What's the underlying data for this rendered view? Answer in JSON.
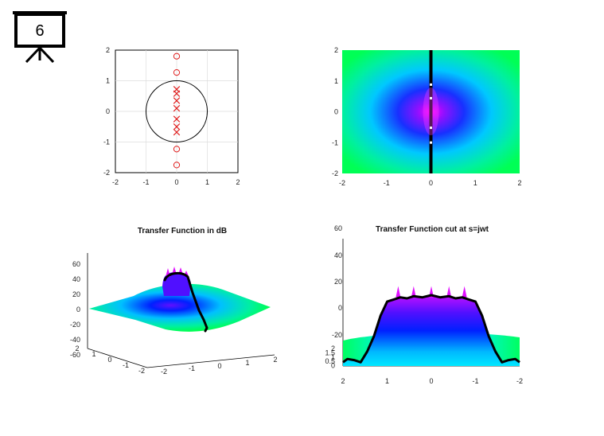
{
  "slide_icon": {
    "icon": "presentation-board-icon",
    "number": "6"
  },
  "chart_data": [
    {
      "type": "scatter",
      "name": "pole-zero-plot",
      "xlim": [
        -2,
        2
      ],
      "ylim": [
        -2,
        2
      ],
      "xticks": [
        "-2",
        "-1",
        "0",
        "1",
        "2"
      ],
      "yticks": [
        "2",
        "1",
        "0",
        "-1",
        "-2"
      ],
      "grid": true,
      "unit_circle": true,
      "zeros": [
        [
          0,
          1.8
        ],
        [
          0,
          1.27
        ],
        [
          0,
          -1.23
        ],
        [
          0,
          -1.75
        ]
      ],
      "poles": [
        [
          0,
          0.72
        ],
        [
          0,
          0.58
        ],
        [
          0,
          0.35
        ],
        [
          0,
          0.1
        ],
        [
          0,
          -0.25
        ],
        [
          0,
          -0.5
        ],
        [
          0,
          -0.68
        ]
      ],
      "colors": {
        "markers": "#e02020",
        "circle": "#000000",
        "grid": "#dddddd"
      }
    },
    {
      "type": "heatmap",
      "name": "transfer-magnitude-map",
      "xlim": [
        -2,
        2
      ],
      "ylim": [
        -2,
        2
      ],
      "xticks": [
        "-2",
        "-1",
        "0",
        "1",
        "2"
      ],
      "yticks": [
        "2",
        "1",
        "0",
        "-1",
        "-2"
      ],
      "colormap": [
        "#00ff60",
        "#00e0ff",
        "#0040ff",
        "#7010ff",
        "#ff00ff"
      ],
      "jw_axis_line": "x = 0"
    },
    {
      "type": "surface",
      "name": "transfer-function-db",
      "title": "Transfer Function in dB",
      "zlim": [
        -60,
        60
      ],
      "zticks": [
        "60",
        "40",
        "20",
        "0",
        "-20",
        "-40",
        "-60"
      ],
      "xticks": [
        "-2",
        "-1",
        "0",
        "1",
        "2"
      ],
      "yticks": [
        "2",
        "1",
        "0",
        "-1",
        "-2"
      ]
    },
    {
      "type": "area",
      "name": "transfer-function-cut",
      "title": "Transfer Function cut at s=jwt",
      "zticks": [
        "60",
        "40",
        "20",
        "0",
        "-20"
      ],
      "extra_ticks": [
        "2",
        "1.5",
        "1",
        "0.5",
        "0"
      ],
      "xticks": [
        "2",
        "1",
        "0",
        "-1",
        "-2"
      ],
      "cut_curve": [
        {
          "x": 2.0,
          "y": -38
        },
        {
          "x": 1.9,
          "y": -35
        },
        {
          "x": 1.75,
          "y": -36
        },
        {
          "x": 1.6,
          "y": -38
        },
        {
          "x": 1.45,
          "y": -28
        },
        {
          "x": 1.3,
          "y": -14
        },
        {
          "x": 1.15,
          "y": 5
        },
        {
          "x": 1.0,
          "y": 18
        },
        {
          "x": 0.85,
          "y": 20
        },
        {
          "x": 0.7,
          "y": 22
        },
        {
          "x": 0.55,
          "y": 21
        },
        {
          "x": 0.4,
          "y": 23
        },
        {
          "x": 0.2,
          "y": 22
        },
        {
          "x": 0.0,
          "y": 24
        },
        {
          "x": -0.2,
          "y": 22
        },
        {
          "x": -0.4,
          "y": 23
        },
        {
          "x": -0.55,
          "y": 21
        },
        {
          "x": -0.7,
          "y": 22
        },
        {
          "x": -0.85,
          "y": 20
        },
        {
          "x": -1.0,
          "y": 18
        },
        {
          "x": -1.15,
          "y": 5
        },
        {
          "x": -1.3,
          "y": -14
        },
        {
          "x": -1.45,
          "y": -28
        },
        {
          "x": -1.6,
          "y": -38
        },
        {
          "x": -1.75,
          "y": -36
        },
        {
          "x": -1.9,
          "y": -35
        },
        {
          "x": -2.0,
          "y": -38
        }
      ]
    }
  ]
}
